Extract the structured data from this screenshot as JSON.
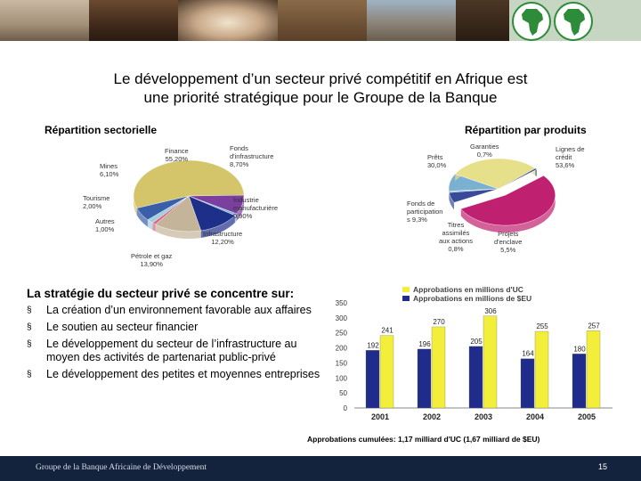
{
  "slide": {
    "title_line1": "Le développement d’un secteur privé compétitif en Afrique est",
    "title_line2": "une priorité stratégique pour le Groupe de la Banque",
    "page_number": "15",
    "footer_org": "Groupe de la Banque Africaine de Développement"
  },
  "sectoral": {
    "heading": "Répartition sectorielle",
    "slices": [
      {
        "label": "Finance\n55,20%",
        "value": 55.2,
        "color": "#d4c46a"
      },
      {
        "label": "Fonds\nd'infrastructure\n8,70%",
        "value": 8.7,
        "color": "#7b3fa0"
      },
      {
        "label": "Industrie\nmanufacturière\n0,90%",
        "value": 0.9,
        "color": "#7fb8d9"
      },
      {
        "label": "Infrastructure\n12,20%",
        "value": 12.2,
        "color": "#1e2f8a"
      },
      {
        "label": "Pétrole et gaz\n13,90%",
        "value": 13.9,
        "color": "#c4b49a"
      },
      {
        "label": "Autres\n1,00%",
        "value": 1.0,
        "color": "#e06080"
      },
      {
        "label": "Tourisme\n2,00%",
        "value": 2.0,
        "color": "#a0d0e0"
      },
      {
        "label": "Mines\n6,10%",
        "value": 6.1,
        "color": "#3b5ea8"
      }
    ]
  },
  "products": {
    "heading": "Répartition par produits",
    "slices": [
      {
        "label": "Lignes de\ncrédit\n53,6%",
        "value": 53.6,
        "color": "#c02070"
      },
      {
        "label": "Projets\nd'enclave\n5,5%",
        "value": 5.5,
        "color": "#3a4a9a"
      },
      {
        "label": "Titres\nassimilés\naux actions\n0,8%",
        "value": 0.8,
        "color": "#9ac0d8"
      },
      {
        "label": "Fonds de\nparticipation\ns 9,3%",
        "value": 9.3,
        "color": "#7ab0d0"
      },
      {
        "label": "Prêts\n30,0%",
        "value": 30.0,
        "color": "#e6e08a"
      },
      {
        "label": "Garanties\n0,7%",
        "value": 0.7,
        "color": "#2f4f8f"
      }
    ]
  },
  "strategy": {
    "heading": "La stratégie du secteur privé se concentre sur:",
    "bullet_symbol": "§",
    "items": [
      "La création d’un environnement favorable aux affaires",
      "Le soutien au secteur financier",
      "Le développement du secteur de l’infrastructure au moyen des activités de partenariat public-privé",
      "Le développement des petites et moyennes entreprises"
    ]
  },
  "chart_data": {
    "type": "bar",
    "categories": [
      "2001",
      "2002",
      "2003",
      "2004",
      "2005"
    ],
    "series": [
      {
        "name": "Approbations en millions d'UC",
        "values": [
          241,
          270,
          306,
          255,
          257
        ],
        "color": "#f2ee3a"
      },
      {
        "name": "Approbations en millions de $EU",
        "values": [
          192,
          196,
          205,
          164,
          180
        ],
        "color": "#1f2c8c"
      }
    ],
    "ylim": [
      0,
      350
    ],
    "yticks": [
      0,
      50,
      100,
      150,
      200,
      250,
      300,
      350
    ],
    "legend": "top",
    "grid": false
  },
  "footnote": "Approbations cumulées: 1,17 milliard d'UC (1,67 milliard de $EU)"
}
